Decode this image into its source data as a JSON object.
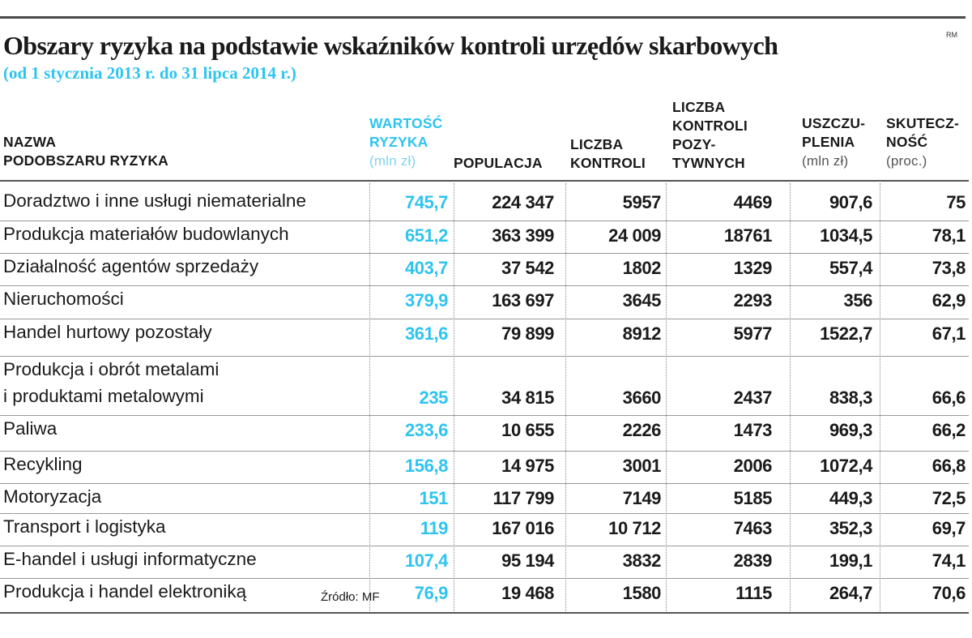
{
  "title": "Obszary ryzyka na podstawie wskaźników kontroli urzędów skarbowych",
  "subtitle": "(od 1 stycznia 2013 r. do 31 lipca 2014 r.)",
  "corner_mark": "RM",
  "source": "Źródło: MF",
  "colors": {
    "accent": "#2ec4ef",
    "text": "#1a1a1a",
    "rule": "#555555"
  },
  "chart_data": {
    "type": "table",
    "title": "Obszary ryzyka na podstawie wskaźników kontroli urzędów skarbowych",
    "subtitle": "(od 1 stycznia 2013 r. do 31 lipca 2014 r.)",
    "columns": [
      {
        "lines": [
          "NAZWA",
          "PODOBSZARU RYZYKA"
        ],
        "unit": ""
      },
      {
        "lines": [
          "WARTOŚĆ",
          "RYZYKA"
        ],
        "unit": "(mln zł)"
      },
      {
        "lines": [
          "POPULACJA"
        ],
        "unit": ""
      },
      {
        "lines": [
          "LICZBA",
          "KONTROLI"
        ],
        "unit": ""
      },
      {
        "lines": [
          "LICZBA",
          "KONTROLI",
          "POZY-",
          "TYWNYCH"
        ],
        "unit": ""
      },
      {
        "lines": [
          "USZCZU-",
          "PLENIA"
        ],
        "unit": "(mln zł)"
      },
      {
        "lines": [
          "SKUTECZ-",
          "NOŚĆ"
        ],
        "unit": "(proc.)"
      }
    ],
    "rows": [
      {
        "name": [
          "Doradztwo i inne usługi niematerialne"
        ],
        "values": [
          "745,7",
          "224 347",
          "5957",
          "4469",
          "907,6",
          "75"
        ]
      },
      {
        "name": [
          "Produkcja materiałów budowlanych"
        ],
        "values": [
          "651,2",
          "363 399",
          "24 009",
          "18761",
          "1034,5",
          "78,1"
        ]
      },
      {
        "name": [
          "Działalność agentów sprzedaży"
        ],
        "values": [
          "403,7",
          "37 542",
          "1802",
          "1329",
          "557,4",
          "73,8"
        ]
      },
      {
        "name": [
          "Nieruchomości"
        ],
        "values": [
          "379,9",
          "163 697",
          "3645",
          "2293",
          "356",
          "62,9"
        ]
      },
      {
        "name": [
          "Handel hurtowy pozostały"
        ],
        "values": [
          "361,6",
          "79 899",
          "8912",
          "5977",
          "1522,7",
          "67,1"
        ]
      },
      {
        "name": [
          "Produkcja i obrót metalami",
          "i produktami metalowymi"
        ],
        "values": [
          "235",
          "34 815",
          "3660",
          "2437",
          "838,3",
          "66,6"
        ]
      },
      {
        "name": [
          "Paliwa"
        ],
        "values": [
          "233,6",
          "10 655",
          "2226",
          "1473",
          "969,3",
          "66,2"
        ]
      },
      {
        "name": [
          "Recykling"
        ],
        "values": [
          "156,8",
          "14 975",
          "3001",
          "2006",
          "1072,4",
          "66,8"
        ]
      },
      {
        "name": [
          "Motoryzacja"
        ],
        "values": [
          "151",
          "117 799",
          "7149",
          "5185",
          "449,3",
          "72,5"
        ]
      },
      {
        "name": [
          "Transport i logistyka"
        ],
        "values": [
          "119",
          "167 016",
          "10 712",
          "7463",
          "352,3",
          "69,7"
        ]
      },
      {
        "name": [
          "E-handel i usługi informatyczne"
        ],
        "values": [
          "107,4",
          "95 194",
          "3832",
          "2839",
          "199,1",
          "74,1"
        ]
      },
      {
        "name": [
          "Produkcja i handel elektroniką"
        ],
        "values": [
          "76,9",
          "19 468",
          "1580",
          "1115",
          "264,7",
          "70,6"
        ]
      }
    ]
  }
}
